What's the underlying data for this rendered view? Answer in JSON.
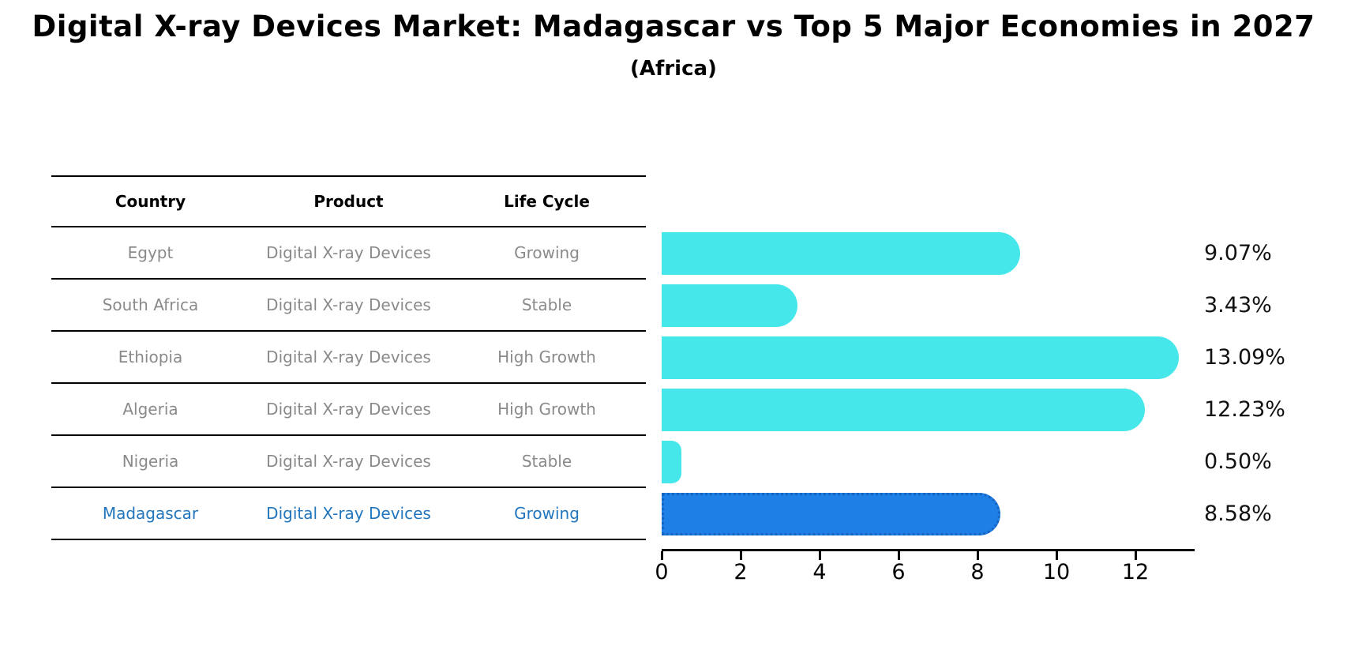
{
  "title": "Digital X-ray Devices Market: Madagascar vs Top 5 Major Economies in 2027",
  "subtitle": "(Africa)",
  "table": {
    "headers": [
      "Country",
      "Product",
      "Life Cycle"
    ],
    "rows": [
      {
        "country": "Egypt",
        "product": "Digital X-ray Devices",
        "life_cycle": "Growing",
        "value": 9.07,
        "label": "9.07%",
        "highlight": false
      },
      {
        "country": "South Africa",
        "product": "Digital X-ray Devices",
        "life_cycle": "Stable",
        "value": 3.43,
        "label": "3.43%",
        "highlight": false
      },
      {
        "country": "Ethiopia",
        "product": "Digital X-ray Devices",
        "life_cycle": "High Growth",
        "value": 13.09,
        "label": "13.09%",
        "highlight": false
      },
      {
        "country": "Algeria",
        "product": "Digital X-ray Devices",
        "life_cycle": "High Growth",
        "value": 12.23,
        "label": "12.23%",
        "highlight": false
      },
      {
        "country": "Nigeria",
        "product": "Digital X-ray Devices",
        "life_cycle": "Stable",
        "value": 0.5,
        "label": "0.50%",
        "highlight": false
      },
      {
        "country": "Madagascar",
        "product": "Digital X-ray Devices",
        "life_cycle": "Growing",
        "value": 8.58,
        "label": "8.58%",
        "highlight": true
      }
    ]
  },
  "chart_data": {
    "type": "bar",
    "orientation": "horizontal",
    "title": "Digital X-ray Devices Market: Madagascar vs Top 5 Major Economies in 2027 (Africa)",
    "categories": [
      "Egypt",
      "South Africa",
      "Ethiopia",
      "Algeria",
      "Nigeria",
      "Madagascar"
    ],
    "values": [
      9.07,
      3.43,
      13.09,
      12.23,
      0.5,
      8.58
    ],
    "value_labels": [
      "9.07%",
      "3.43%",
      "13.09%",
      "12.23%",
      "0.50%",
      "8.58%"
    ],
    "highlighted_category": "Madagascar",
    "xlabel": "",
    "ylabel": "",
    "xticks": [
      0,
      2,
      4,
      6,
      8,
      10,
      12
    ],
    "xlim": [
      0,
      13.5
    ],
    "grid": "off",
    "legend": "none",
    "colors": {
      "bar": "#45E7EA",
      "highlight_bar": "#1E80E6",
      "highlight_border": "#1565C0",
      "highlight_text": "#2176BD",
      "cell_text": "#8A8A8A",
      "header_text": "#000000",
      "axis": "#000000",
      "value_label": "#111111"
    }
  }
}
